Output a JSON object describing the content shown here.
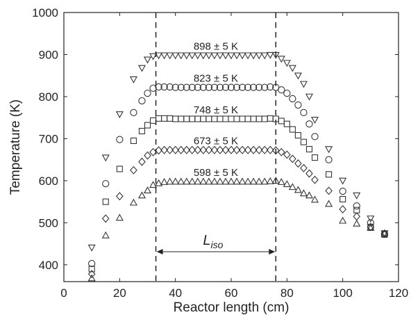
{
  "chart_data": {
    "type": "scatter",
    "xlabel": "Reactor length (cm)",
    "ylabel": "Temperature (K)",
    "xlim": [
      0,
      120
    ],
    "ylim": [
      360,
      1000
    ],
    "xticks": [
      0,
      20,
      40,
      60,
      80,
      100,
      120
    ],
    "yticks": [
      400,
      500,
      600,
      700,
      800,
      900,
      1000
    ],
    "grid": false,
    "isothermal_bounds": [
      33,
      76
    ],
    "isothermal_label": {
      "main": "L",
      "sub": "iso"
    },
    "series": [
      {
        "marker": "triangle-down",
        "annotation": "898 ± 5 K",
        "x": [
          10,
          15,
          20,
          25,
          28,
          30,
          32,
          34,
          36,
          38,
          40,
          42,
          44,
          46,
          48,
          50,
          52,
          54,
          56,
          58,
          60,
          62,
          64,
          66,
          68,
          70,
          72,
          74,
          76,
          78,
          80,
          82,
          84,
          86,
          88,
          90,
          95,
          100,
          105,
          110,
          115
        ],
        "y": [
          441,
          655,
          758,
          841,
          868,
          888,
          896,
          898,
          898,
          898,
          898,
          898,
          898,
          898,
          898,
          898,
          898,
          898,
          898,
          898,
          898,
          898,
          898,
          898,
          898,
          898,
          898,
          899,
          899,
          890,
          880,
          868,
          850,
          830,
          800,
          745,
          675,
          600,
          565,
          510,
          475
        ]
      },
      {
        "marker": "circle",
        "annotation": "823 ± 5 K",
        "x": [
          10,
          15,
          20,
          25,
          28,
          30,
          32,
          34,
          36,
          38,
          40,
          42,
          44,
          46,
          48,
          50,
          52,
          54,
          56,
          58,
          60,
          62,
          64,
          66,
          68,
          70,
          72,
          74,
          76,
          78,
          80,
          82,
          84,
          86,
          88,
          90,
          95,
          100,
          105,
          110,
          115
        ],
        "y": [
          403,
          593,
          698,
          762,
          790,
          808,
          820,
          823,
          823,
          823,
          822,
          822,
          822,
          822,
          822,
          822,
          822,
          822,
          822,
          822,
          822,
          822,
          822,
          822,
          822,
          822,
          822,
          823,
          822,
          816,
          808,
          795,
          780,
          762,
          735,
          705,
          650,
          575,
          540,
          500,
          473
        ]
      },
      {
        "marker": "square",
        "annotation": "748 ± 5 K",
        "x": [
          10,
          15,
          20,
          25,
          28,
          30,
          32,
          34,
          36,
          38,
          40,
          42,
          44,
          46,
          48,
          50,
          52,
          54,
          56,
          58,
          60,
          62,
          64,
          66,
          68,
          70,
          72,
          74,
          76,
          78,
          80,
          82,
          84,
          86,
          88,
          90,
          95,
          100,
          105,
          110,
          115
        ],
        "y": [
          390,
          550,
          628,
          695,
          718,
          732,
          743,
          748,
          748,
          748,
          747,
          747,
          747,
          747,
          747,
          747,
          747,
          747,
          747,
          747,
          747,
          747,
          747,
          747,
          747,
          747,
          747,
          748,
          747,
          742,
          735,
          722,
          708,
          692,
          675,
          655,
          615,
          556,
          530,
          490,
          472
        ]
      },
      {
        "marker": "diamond",
        "annotation": "673 ± 5 K",
        "x": [
          10,
          15,
          20,
          25,
          28,
          30,
          32,
          34,
          36,
          38,
          40,
          42,
          44,
          46,
          48,
          50,
          52,
          54,
          56,
          58,
          60,
          62,
          64,
          66,
          68,
          70,
          72,
          74,
          76,
          78,
          80,
          82,
          84,
          86,
          88,
          90,
          95,
          100,
          105,
          110,
          115
        ],
        "y": [
          378,
          510,
          563,
          625,
          645,
          660,
          668,
          672,
          673,
          673,
          673,
          673,
          673,
          673,
          673,
          673,
          673,
          673,
          673,
          673,
          673,
          673,
          673,
          673,
          673,
          673,
          673,
          673,
          672,
          668,
          662,
          652,
          641,
          630,
          617,
          602,
          576,
          532,
          515,
          490,
          474
        ]
      },
      {
        "marker": "triangle-up",
        "annotation": "598 ± 5 K",
        "x": [
          10,
          15,
          20,
          25,
          28,
          30,
          32,
          34,
          36,
          38,
          40,
          42,
          44,
          46,
          48,
          50,
          52,
          54,
          56,
          58,
          60,
          62,
          64,
          66,
          68,
          70,
          72,
          74,
          76,
          78,
          80,
          82,
          84,
          86,
          88,
          90,
          95,
          100,
          105,
          110,
          115
        ],
        "y": [
          368,
          470,
          512,
          548,
          565,
          577,
          590,
          594,
          597,
          598,
          598,
          598,
          598,
          598,
          598,
          598,
          598,
          598,
          598,
          598,
          598,
          598,
          598,
          598,
          598,
          598,
          598,
          599,
          600,
          597,
          592,
          585,
          578,
          570,
          565,
          555,
          545,
          505,
          498,
          488,
          475
        ]
      }
    ]
  }
}
